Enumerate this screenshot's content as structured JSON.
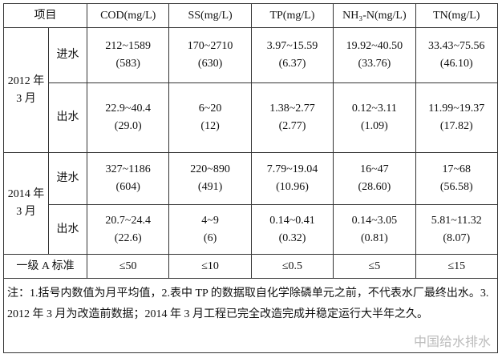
{
  "table": {
    "header": [
      "项目",
      "COD(mg/L)",
      "SS(mg/L)",
      "TP(mg/L)",
      "NH₃-N(mg/L)",
      "TN(mg/L)"
    ],
    "groups": [
      {
        "label": "2012 年 3 月",
        "rows": [
          {
            "label": "进水",
            "cells": [
              {
                "range": "212~1589",
                "mean": "(583)"
              },
              {
                "range": "170~2710",
                "mean": "(630)"
              },
              {
                "range": "3.97~15.59",
                "mean": "(6.37)"
              },
              {
                "range": "19.92~40.50",
                "mean": "(33.76)"
              },
              {
                "range": "33.43~75.56",
                "mean": "(46.10)"
              }
            ]
          },
          {
            "label": "出水",
            "cells": [
              {
                "range": "22.9~40.4",
                "mean": "(29.0)"
              },
              {
                "range": "6~20",
                "mean": "(12)"
              },
              {
                "range": "1.38~2.77",
                "mean": "(2.77)"
              },
              {
                "range": "0.12~3.11",
                "mean": "(1.09)"
              },
              {
                "range": "11.99~19.37",
                "mean": "(17.82)"
              }
            ]
          }
        ]
      },
      {
        "label": "2014 年 3 月",
        "rows": [
          {
            "label": "进水",
            "cells": [
              {
                "range": "327~1186",
                "mean": "(604)"
              },
              {
                "range": "220~890",
                "mean": "(491)"
              },
              {
                "range": "7.79~19.04",
                "mean": "(10.96)"
              },
              {
                "range": "16~47",
                "mean": "(28.60)"
              },
              {
                "range": "17~68",
                "mean": "(56.58)"
              }
            ]
          },
          {
            "label": "出水",
            "cells": [
              {
                "range": "20.7~24.4",
                "mean": "(22.6)"
              },
              {
                "range": "4~9",
                "mean": "(6)"
              },
              {
                "range": "0.14~0.41",
                "mean": "(0.32)"
              },
              {
                "range": "0.14~3.05",
                "mean": "(0.81)"
              },
              {
                "range": "5.81~11.32",
                "mean": "(8.07)"
              }
            ]
          }
        ]
      }
    ],
    "standard": {
      "label": "一级 A 标准",
      "values": [
        "≤50",
        "≤10",
        "≤0.5",
        "≤5",
        "≤15"
      ]
    },
    "note": "注：1.括号内数值为月平均值，2.表中 TP 的数据取自化学除磷单元之前，不代表水厂最终出水。3. 2012 年 3 月为改造前数据；2014 年 3 月工程已完全改造完成并稳定运行大半年之久。"
  },
  "watermark": "中国给水排水"
}
